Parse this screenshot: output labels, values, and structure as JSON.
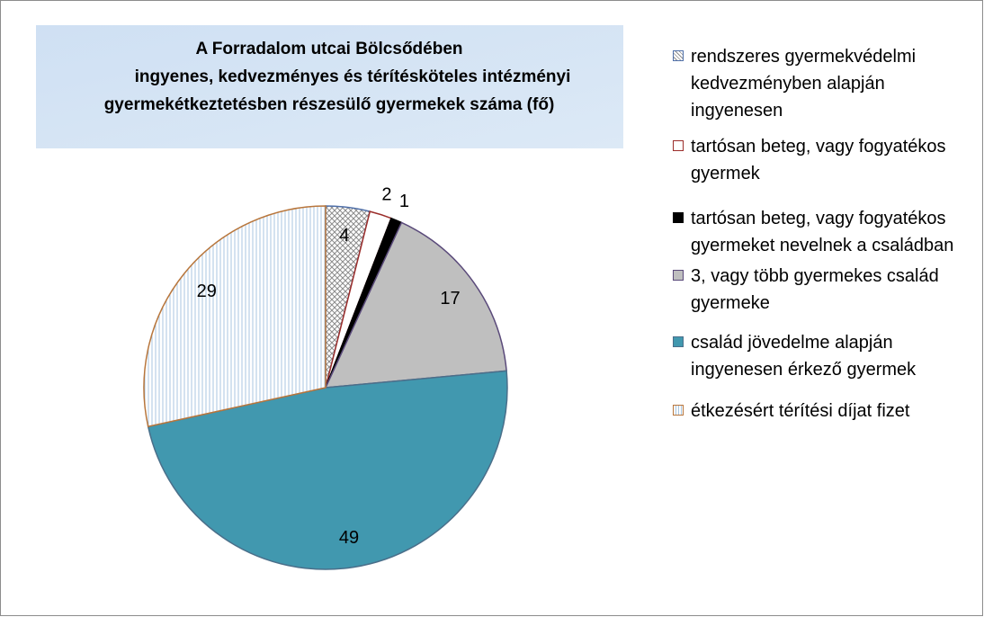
{
  "chart_data": {
    "type": "pie",
    "title": [
      "A Forradalom utcai Bölcsődében",
      "ingyenes, kedvezményes és térítésköteles intézményi",
      "gyermekétkeztetésben részesülő gyermekek száma (fő)"
    ],
    "categories": [
      "rendszeres gyermekvédelmi kedvezményben alapján ingyenesen",
      "tartósan beteg, vagy fogyatékos gyermek",
      "tartósan beteg, vagy fogyatékos gyermeket nevelnek a családban",
      "3, vagy több gyermekes család gyermeke",
      "család jövedelme alapján ingyenesen érkező gyermek",
      "étkezésért térítési díjat fizet"
    ],
    "values": [
      4,
      2,
      1,
      17,
      49,
      29
    ],
    "colors": [
      "#8c8c8c",
      "#ffffff",
      "#000000",
      "#bfbfbf",
      "#4198af",
      "#a9c6e0"
    ],
    "edge_colors": [
      "#4f6fa8",
      "#9b2d2a",
      "#000000",
      "#5a4a7a",
      "#4a6f8a",
      "#b8763c"
    ],
    "legend": "right"
  }
}
